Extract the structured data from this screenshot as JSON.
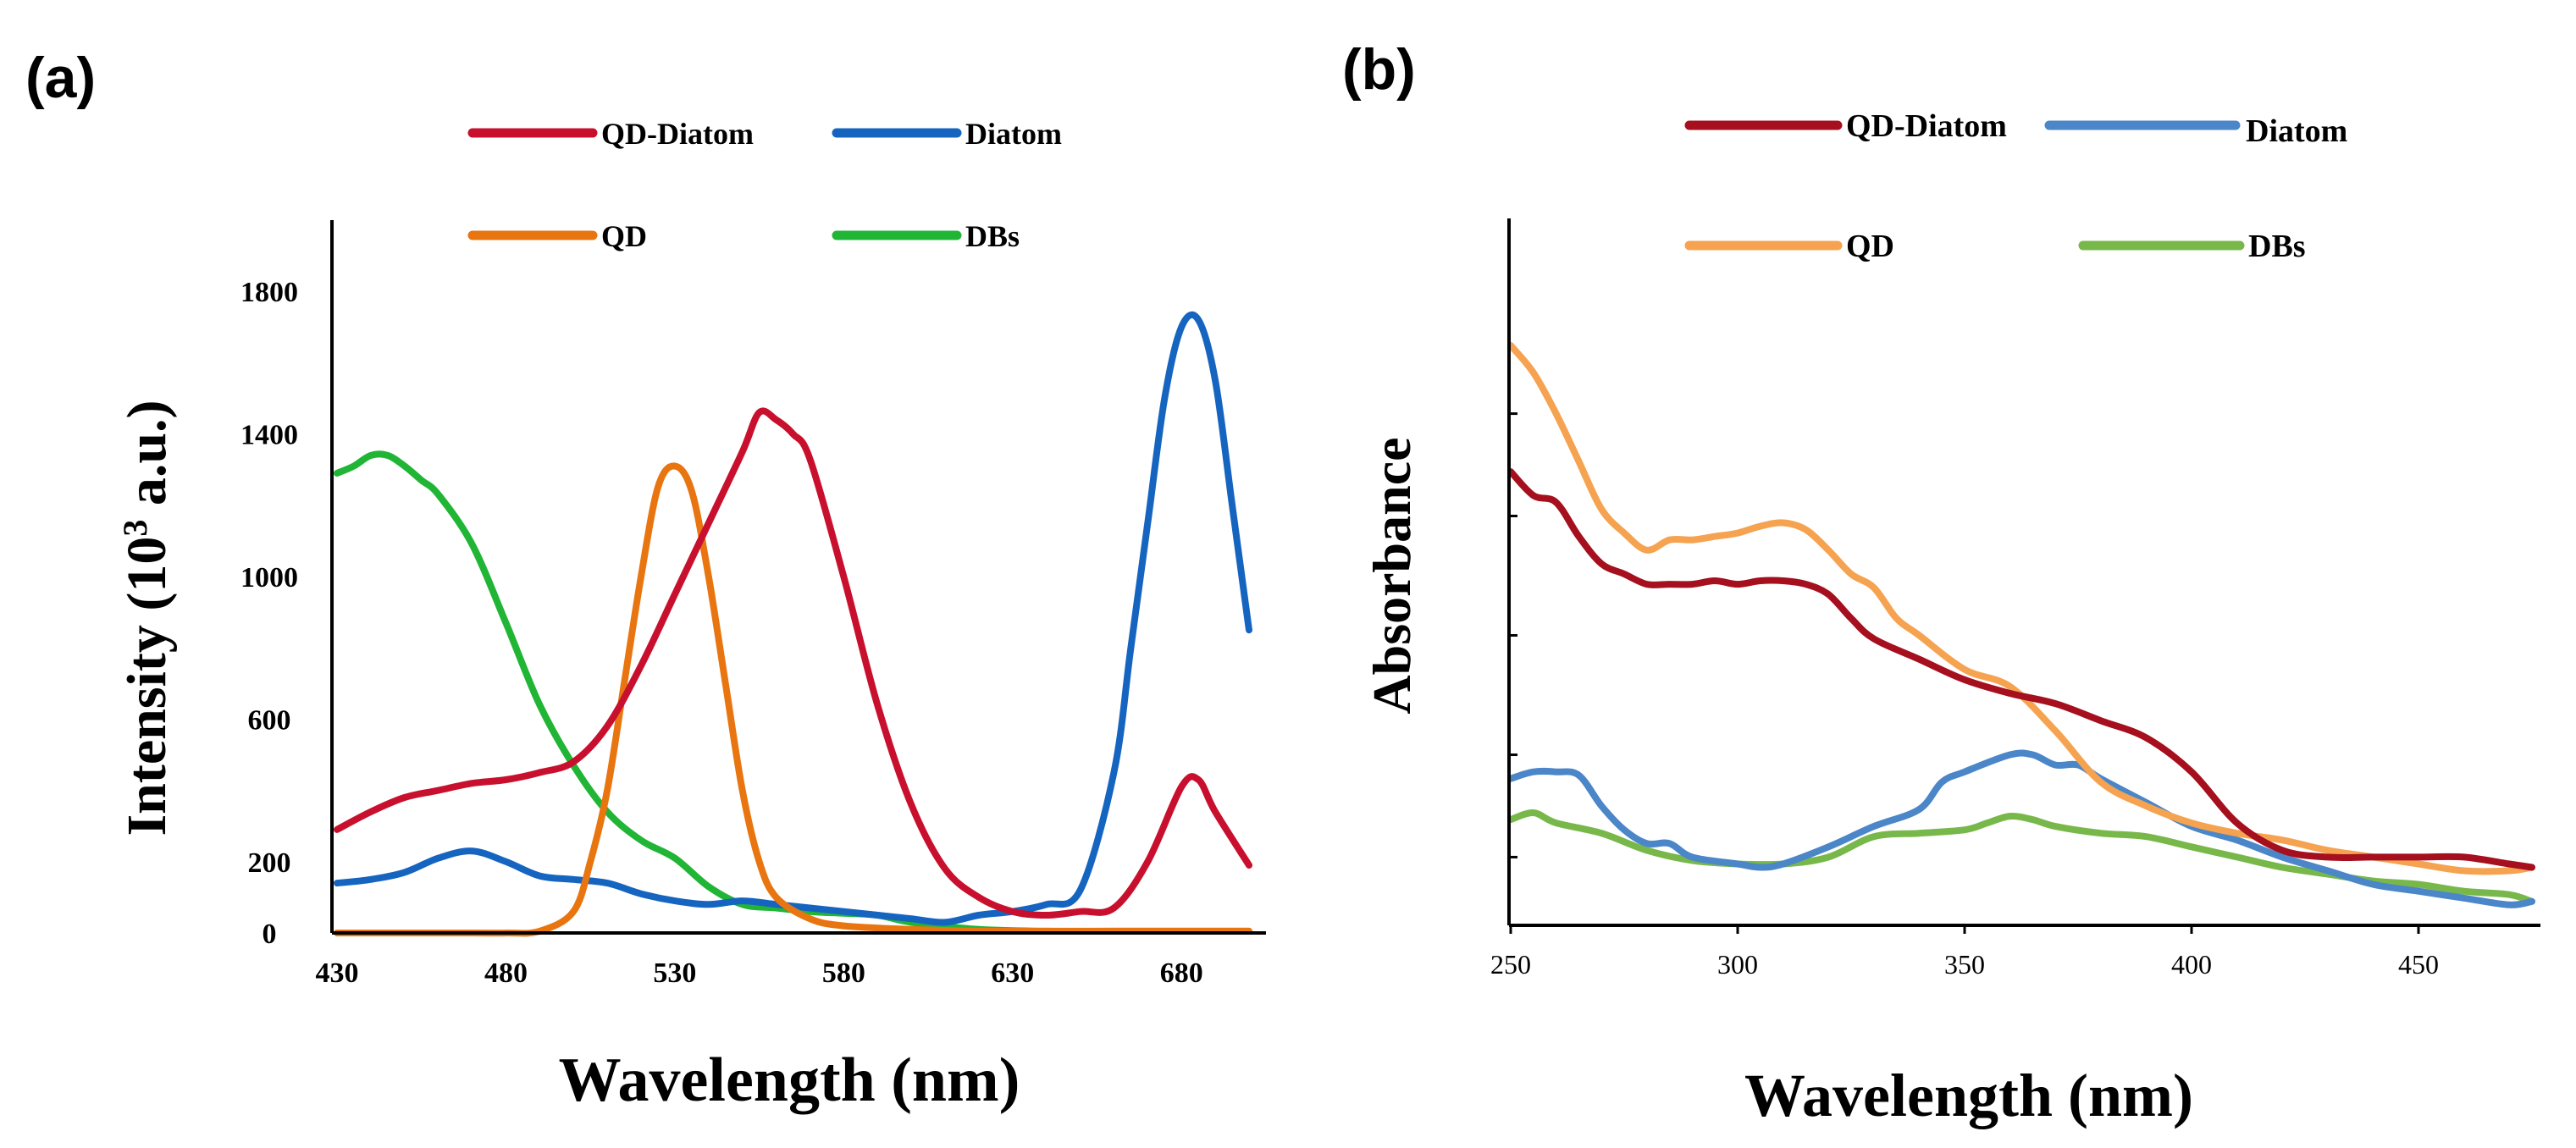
{
  "colors": {
    "qd_diatom_a": "#c8102e",
    "diatom_a": "#1565c0",
    "qd_a": "#e8750f",
    "dbs_a": "#21b535",
    "qd_diatom_b": "#a50f1e",
    "diatom_b": "#4a86c8",
    "qd_b": "#f5a350",
    "dbs_b": "#78b84a",
    "axis": "#000000"
  },
  "chart_data": [
    {
      "panel": "(a)",
      "type": "line",
      "title": "",
      "xlabel": "Wavelength (nm)",
      "ylabel_main": "Intensity (10",
      "ylabel_sup": "3",
      "ylabel_tail": " a.u.)",
      "xlim": [
        430,
        700
      ],
      "ylim": [
        0,
        2000
      ],
      "xticks": [
        430,
        480,
        530,
        580,
        630,
        680
      ],
      "xtick_labels": [
        "430",
        "480",
        "530",
        "580",
        "630",
        "680"
      ],
      "yticks": [
        0,
        200,
        600,
        1000,
        1400,
        1800
      ],
      "ytick_labels": [
        "0",
        "200",
        "600",
        "1000",
        "1400",
        "1800"
      ],
      "legend_position": "top",
      "series": [
        {
          "name": "QD-Diatom",
          "color_key": "qd_diatom_a",
          "x": [
            430,
            440,
            450,
            460,
            470,
            480,
            490,
            500,
            510,
            520,
            530,
            540,
            550,
            555,
            560,
            565,
            570,
            580,
            590,
            600,
            610,
            620,
            630,
            640,
            650,
            660,
            670,
            680,
            685,
            690,
            700
          ],
          "y": [
            290,
            340,
            380,
            400,
            420,
            430,
            450,
            480,
            580,
            750,
            950,
            1150,
            1350,
            1460,
            1440,
            1400,
            1330,
            1000,
            640,
            360,
            180,
            100,
            60,
            50,
            60,
            70,
            200,
            410,
            430,
            340,
            190
          ]
        },
        {
          "name": "Diatom",
          "color_key": "diatom_a",
          "x": [
            430,
            440,
            450,
            460,
            470,
            480,
            490,
            500,
            510,
            520,
            530,
            540,
            550,
            560,
            570,
            580,
            590,
            600,
            610,
            620,
            630,
            640,
            650,
            660,
            665,
            670,
            675,
            680,
            685,
            690,
            695,
            700
          ],
          "y": [
            140,
            150,
            170,
            210,
            230,
            200,
            160,
            150,
            140,
            110,
            90,
            80,
            90,
            80,
            70,
            60,
            50,
            40,
            30,
            50,
            60,
            80,
            120,
            450,
            800,
            1150,
            1500,
            1700,
            1720,
            1550,
            1200,
            850
          ]
        },
        {
          "name": "QD",
          "color_key": "qd_a",
          "x": [
            430,
            450,
            470,
            480,
            490,
            500,
            505,
            510,
            515,
            520,
            525,
            530,
            535,
            540,
            545,
            550,
            555,
            560,
            570,
            580,
            600,
            620,
            640,
            660,
            680,
            700
          ],
          "y": [
            0,
            0,
            0,
            0,
            5,
            60,
            200,
            400,
            700,
            1000,
            1250,
            1310,
            1240,
            1000,
            700,
            400,
            200,
            100,
            40,
            20,
            10,
            5,
            5,
            5,
            5,
            5
          ]
        },
        {
          "name": "DBs",
          "color_key": "dbs_a",
          "x": [
            430,
            435,
            440,
            445,
            450,
            455,
            460,
            470,
            480,
            490,
            500,
            510,
            520,
            530,
            540,
            550,
            560,
            570,
            580,
            590,
            600,
            620,
            640,
            660,
            680,
            700
          ],
          "y": [
            1290,
            1310,
            1340,
            1340,
            1310,
            1270,
            1230,
            1090,
            870,
            640,
            470,
            340,
            260,
            210,
            130,
            80,
            70,
            60,
            55,
            50,
            30,
            10,
            5,
            5,
            5,
            5
          ]
        }
      ]
    },
    {
      "panel": "(b)",
      "type": "line",
      "title": "",
      "xlabel": "Wavelength (nm)",
      "ylabel": "Absorbance",
      "xlim": [
        250,
        475
      ],
      "ylim": [
        0,
        1.7
      ],
      "xticks": [
        250,
        300,
        350,
        400,
        450
      ],
      "xtick_labels": [
        "250",
        "300",
        "350",
        "400",
        "450"
      ],
      "ytick_values": [
        0.2,
        0.5,
        0.85,
        1.2,
        1.5
      ],
      "legend_position": "top",
      "series": [
        {
          "name": "QD-Diatom",
          "color_key": "qd_diatom_b",
          "x": [
            250,
            255,
            260,
            265,
            270,
            275,
            280,
            285,
            290,
            295,
            300,
            305,
            310,
            315,
            320,
            325,
            330,
            340,
            350,
            360,
            370,
            380,
            390,
            400,
            410,
            420,
            430,
            440,
            450,
            460,
            470,
            475
          ],
          "y": [
            1.33,
            1.26,
            1.24,
            1.14,
            1.06,
            1.03,
            1.0,
            1.0,
            1.0,
            1.01,
            1.0,
            1.01,
            1.01,
            1.0,
            0.97,
            0.9,
            0.84,
            0.78,
            0.72,
            0.68,
            0.65,
            0.6,
            0.55,
            0.45,
            0.3,
            0.22,
            0.2,
            0.2,
            0.2,
            0.2,
            0.18,
            0.17
          ]
        },
        {
          "name": "Diatom",
          "color_key": "diatom_b",
          "x": [
            250,
            255,
            260,
            265,
            270,
            275,
            280,
            285,
            290,
            300,
            305,
            310,
            320,
            330,
            340,
            345,
            350,
            360,
            365,
            370,
            375,
            380,
            390,
            400,
            410,
            420,
            430,
            440,
            450,
            460,
            470,
            475
          ],
          "y": [
            0.43,
            0.45,
            0.45,
            0.44,
            0.35,
            0.28,
            0.24,
            0.24,
            0.2,
            0.18,
            0.17,
            0.18,
            0.23,
            0.29,
            0.34,
            0.42,
            0.45,
            0.5,
            0.5,
            0.47,
            0.47,
            0.43,
            0.36,
            0.29,
            0.25,
            0.2,
            0.16,
            0.12,
            0.1,
            0.08,
            0.06,
            0.07
          ]
        },
        {
          "name": "QD",
          "color_key": "qd_b",
          "x": [
            250,
            255,
            260,
            265,
            270,
            275,
            280,
            285,
            290,
            295,
            300,
            305,
            310,
            315,
            320,
            325,
            330,
            335,
            340,
            350,
            360,
            370,
            380,
            390,
            400,
            410,
            420,
            430,
            440,
            450,
            460,
            470,
            475
          ],
          "y": [
            1.7,
            1.62,
            1.5,
            1.36,
            1.22,
            1.15,
            1.1,
            1.13,
            1.13,
            1.14,
            1.15,
            1.17,
            1.18,
            1.16,
            1.1,
            1.03,
            0.99,
            0.9,
            0.85,
            0.75,
            0.7,
            0.57,
            0.42,
            0.35,
            0.3,
            0.27,
            0.25,
            0.22,
            0.2,
            0.18,
            0.16,
            0.16,
            0.17
          ]
        },
        {
          "name": "DBs",
          "color_key": "dbs_b",
          "x": [
            250,
            255,
            260,
            270,
            280,
            290,
            300,
            310,
            320,
            330,
            340,
            350,
            355,
            360,
            365,
            370,
            380,
            390,
            400,
            410,
            420,
            430,
            440,
            450,
            460,
            470,
            475
          ],
          "y": [
            0.31,
            0.33,
            0.3,
            0.27,
            0.22,
            0.19,
            0.18,
            0.18,
            0.2,
            0.26,
            0.27,
            0.28,
            0.3,
            0.32,
            0.31,
            0.29,
            0.27,
            0.26,
            0.23,
            0.2,
            0.17,
            0.15,
            0.13,
            0.12,
            0.1,
            0.09,
            0.07
          ]
        }
      ]
    }
  ]
}
